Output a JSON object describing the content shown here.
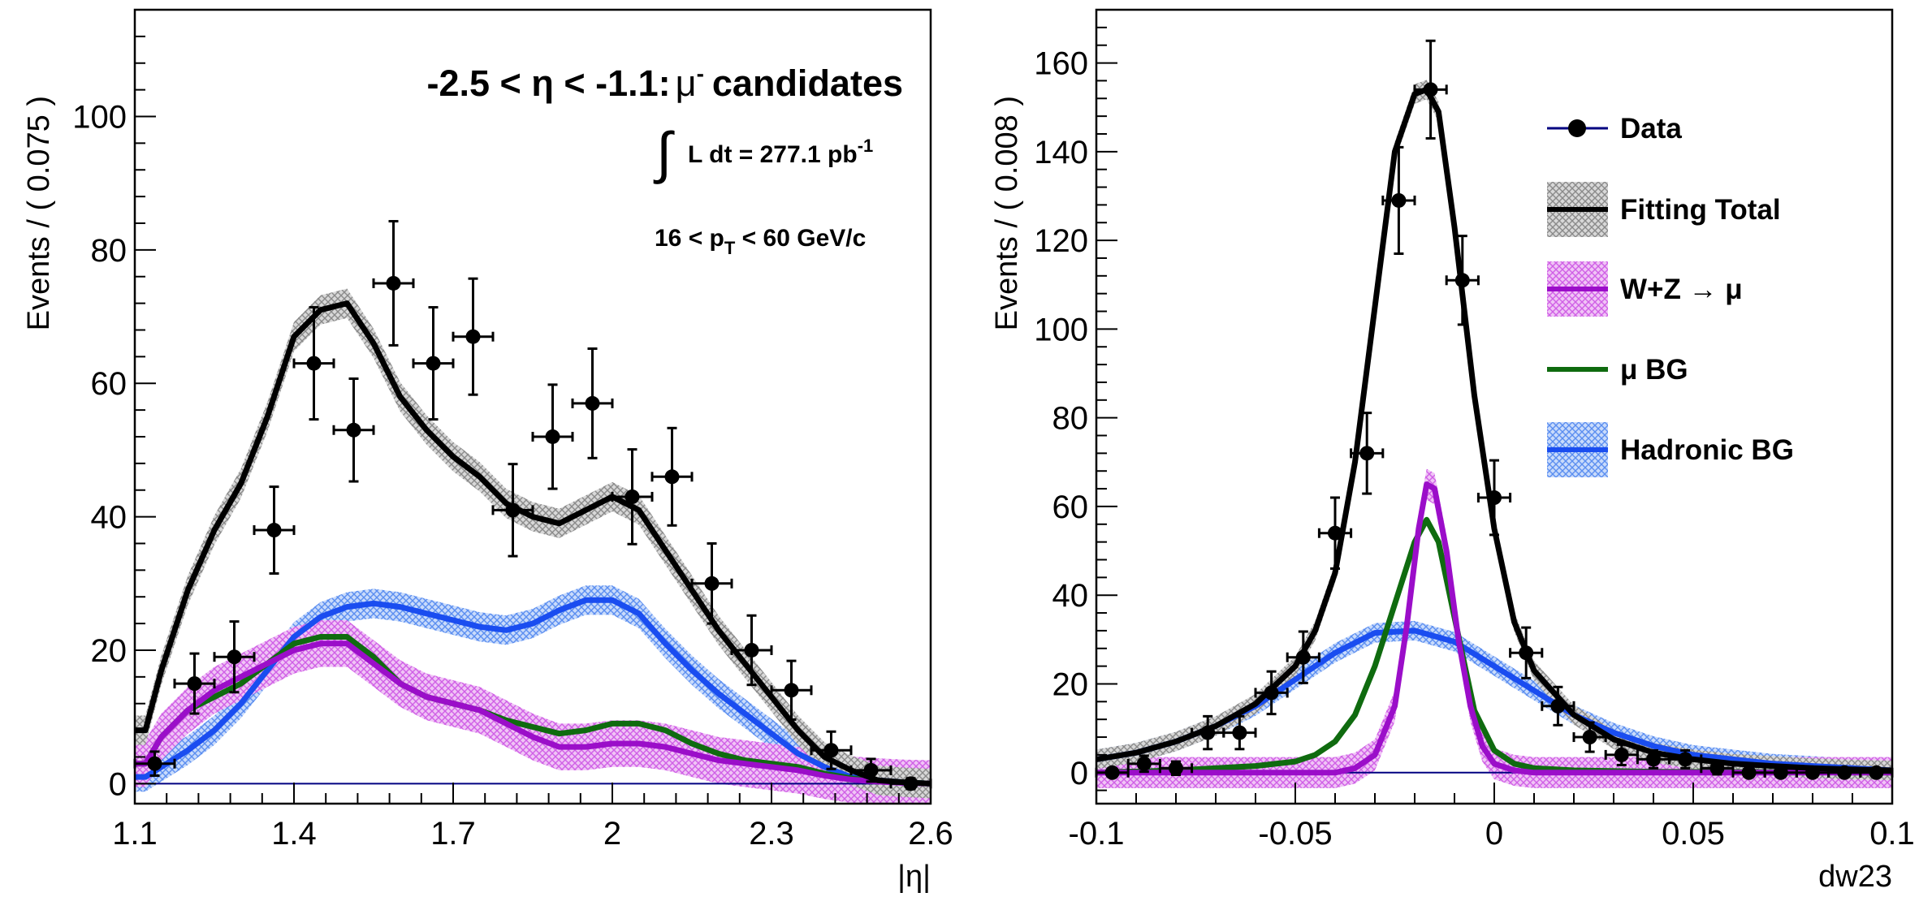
{
  "colors": {
    "data": "#000000",
    "total": "#000000",
    "total_band": "#9a9a9a",
    "signal": "#9b0ec9",
    "signal_band": "#d98be8",
    "mu_bg": "#0f6b0f",
    "hadronic": "#1a4df0",
    "hadronic_band": "#7fa8f5",
    "data_line": "#000080"
  },
  "legend": {
    "data": "Data",
    "total": "Fitting Total",
    "signal": "W+Z → μ",
    "mu_bg": "μ BG",
    "hadronic": "Hadronic BG"
  },
  "annotations": {
    "selection": "-2.5 < η < -1.1:",
    "mu": "μ",
    "mu_sup": "-",
    "candidates": "candidates",
    "lumi_integral": "∫",
    "lumi": "L dt = 277.1 pb",
    "lumi_sup": "-1",
    "pt_pre": "16 < p",
    "pt_sub": "T",
    "pt_post": " < 60 GeV/c"
  },
  "chart_data": [
    {
      "type": "line",
      "xlabel": "|η|",
      "ylabel": "Events / ( 0.075 )",
      "xlim": [
        1.1,
        2.6
      ],
      "ylim": [
        -3,
        116
      ],
      "xticks": [
        1.1,
        1.4,
        1.7,
        2.0,
        2.3,
        2.6
      ],
      "xtick_labels": [
        "1.1",
        "1.4",
        "1.7",
        "2",
        "2.3",
        "2.6"
      ],
      "yticks": [
        0,
        20,
        40,
        60,
        80,
        100
      ],
      "ytick_labels": [
        "0",
        "20",
        "40",
        "60",
        "80",
        "100"
      ],
      "legend_placement": "none",
      "data_points": {
        "x": [
          1.1375,
          1.2125,
          1.2875,
          1.3625,
          1.4375,
          1.5125,
          1.5875,
          1.6625,
          1.7375,
          1.8125,
          1.8875,
          1.9625,
          2.0375,
          2.1125,
          2.1875,
          2.2625,
          2.3375,
          2.4125,
          2.4875,
          2.5625
        ],
        "y": [
          3,
          15,
          19,
          38,
          63,
          53,
          75,
          63,
          67,
          41,
          52,
          57,
          43,
          46,
          30,
          20,
          14,
          5,
          2,
          0
        ],
        "xerr": 0.0375,
        "yerr": [
          1.8,
          4.5,
          5.3,
          6.5,
          8.4,
          7.7,
          9.3,
          8.4,
          8.7,
          6.9,
          7.8,
          8.2,
          7.1,
          7.3,
          6.0,
          5.2,
          4.4,
          2.8,
          1.7,
          0.8
        ]
      },
      "series": [
        {
          "name": "Fitting Total",
          "x": [
            1.1,
            1.12,
            1.15,
            1.2,
            1.25,
            1.3,
            1.35,
            1.4,
            1.45,
            1.5,
            1.55,
            1.6,
            1.65,
            1.7,
            1.75,
            1.8,
            1.85,
            1.9,
            1.95,
            2.0,
            2.05,
            2.1,
            2.15,
            2.2,
            2.25,
            2.3,
            2.35,
            2.4,
            2.45,
            2.5,
            2.55,
            2.6
          ],
          "y": [
            8,
            8,
            17,
            29,
            38,
            45,
            55,
            67,
            71,
            72,
            66,
            58,
            53,
            49,
            46,
            42,
            40,
            39,
            41,
            43,
            41,
            35,
            29,
            23,
            18,
            13,
            8,
            4,
            2,
            0.5,
            0.2,
            0
          ]
        },
        {
          "name": "W+Z → μ",
          "x": [
            1.1,
            1.12,
            1.15,
            1.2,
            1.25,
            1.3,
            1.35,
            1.4,
            1.45,
            1.5,
            1.55,
            1.6,
            1.65,
            1.7,
            1.75,
            1.8,
            1.85,
            1.9,
            1.95,
            2.0,
            2.05,
            2.1,
            2.15,
            2.2,
            2.25,
            2.3,
            2.35,
            2.4,
            2.45,
            2.5,
            2.55,
            2.6
          ],
          "y": [
            3,
            3,
            7,
            11,
            14,
            16,
            18,
            20,
            21,
            21,
            18,
            15,
            13,
            12,
            11,
            9,
            7,
            5.5,
            5.5,
            6,
            6,
            5.5,
            4.5,
            3.5,
            3,
            2.5,
            2,
            1.2,
            0.6,
            0.3,
            0.1,
            0
          ]
        },
        {
          "name": "μ BG",
          "x": [
            1.1,
            1.12,
            1.15,
            1.2,
            1.25,
            1.3,
            1.35,
            1.4,
            1.45,
            1.5,
            1.55,
            1.6,
            1.65,
            1.7,
            1.75,
            1.8,
            1.85,
            1.9,
            1.95,
            2.0,
            2.05,
            2.1,
            2.15,
            2.2,
            2.25,
            2.3,
            2.35,
            2.4,
            2.45,
            2.5,
            2.55,
            2.6
          ],
          "y": [
            3,
            3,
            7,
            11,
            13,
            15,
            18,
            21,
            22,
            22,
            19,
            15,
            13,
            12,
            11,
            9.5,
            8.5,
            7.5,
            8,
            9,
            9,
            8,
            6,
            4.5,
            3.5,
            3,
            2.5,
            1.5,
            0.8,
            0.4,
            0.2,
            0
          ]
        },
        {
          "name": "Hadronic BG",
          "x": [
            1.1,
            1.12,
            1.15,
            1.2,
            1.25,
            1.3,
            1.35,
            1.4,
            1.45,
            1.5,
            1.55,
            1.6,
            1.65,
            1.7,
            1.75,
            1.8,
            1.85,
            1.9,
            1.95,
            2.0,
            2.05,
            2.1,
            2.15,
            2.2,
            2.25,
            2.3,
            2.35,
            2.4,
            2.45,
            2.5,
            2.55,
            2.6
          ],
          "y": [
            1,
            1,
            2.5,
            5,
            8,
            12,
            17,
            22,
            25,
            26.5,
            27,
            26.5,
            25.5,
            24.5,
            23.5,
            23,
            24,
            26,
            27.5,
            27.5,
            25.5,
            21,
            17,
            13.5,
            10.5,
            7.5,
            4.5,
            2.5,
            1,
            0.5,
            0.2,
            0
          ]
        }
      ]
    },
    {
      "type": "line",
      "xlabel": "dw23",
      "ylabel": "Events / ( 0.008 )",
      "xlim": [
        -0.1,
        0.1
      ],
      "ylim": [
        -7,
        172
      ],
      "xticks": [
        -0.1,
        -0.05,
        0,
        0.05,
        0.1
      ],
      "xtick_labels": [
        "-0.1",
        "-0.05",
        "0",
        "0.05",
        "0.1"
      ],
      "yticks": [
        0,
        20,
        40,
        60,
        80,
        100,
        120,
        140,
        160
      ],
      "ytick_labels": [
        "0",
        "20",
        "40",
        "60",
        "80",
        "100",
        "120",
        "140",
        "160"
      ],
      "legend_placement": "top-right",
      "data_points": {
        "x": [
          -0.096,
          -0.088,
          -0.08,
          -0.072,
          -0.064,
          -0.056,
          -0.048,
          -0.04,
          -0.032,
          -0.024,
          -0.016,
          -0.008,
          0.0,
          0.008,
          0.016,
          0.024,
          0.032,
          0.04,
          0.048,
          0.056,
          0.064,
          0.072,
          0.08,
          0.088,
          0.096
        ],
        "y": [
          0,
          2,
          1,
          9,
          9,
          18,
          26,
          54,
          72,
          129,
          154,
          111,
          62,
          27,
          15,
          8,
          4,
          3,
          3,
          1,
          0,
          0,
          0,
          0,
          0
        ],
        "xerr": 0.004,
        "yerr": [
          0.8,
          1.8,
          1.5,
          3.7,
          3.7,
          4.8,
          5.8,
          8.0,
          9.1,
          12.0,
          11.0,
          10.0,
          8.4,
          5.7,
          4.3,
          3.3,
          2.3,
          2.0,
          2.0,
          1.4,
          0.8,
          0.8,
          0.8,
          0.8,
          0.8
        ]
      },
      "series": [
        {
          "name": "Fitting Total",
          "x": [
            -0.1,
            -0.09,
            -0.08,
            -0.07,
            -0.06,
            -0.05,
            -0.045,
            -0.04,
            -0.035,
            -0.03,
            -0.025,
            -0.02,
            -0.017,
            -0.014,
            -0.01,
            -0.005,
            0.0,
            0.005,
            0.01,
            0.02,
            0.03,
            0.04,
            0.05,
            0.06,
            0.07,
            0.08,
            0.09,
            0.1
          ],
          "y": [
            3,
            4.5,
            7,
            10.5,
            15.5,
            24,
            32,
            45,
            70,
            105,
            140,
            153,
            154,
            149,
            123,
            85,
            55,
            34,
            23,
            13,
            7.5,
            4.5,
            3,
            2,
            1.5,
            1,
            0.7,
            0.5
          ]
        },
        {
          "name": "W+Z → μ",
          "x": [
            -0.1,
            -0.04,
            -0.035,
            -0.03,
            -0.025,
            -0.022,
            -0.019,
            -0.017,
            -0.015,
            -0.012,
            -0.009,
            -0.006,
            -0.003,
            0.0,
            0.005,
            0.01,
            0.02,
            0.1
          ],
          "y": [
            0,
            0,
            1,
            4,
            15,
            33,
            55,
            65,
            64,
            50,
            30,
            15,
            6,
            2,
            0.5,
            0,
            0,
            0
          ]
        },
        {
          "name": "μ BG",
          "x": [
            -0.1,
            -0.08,
            -0.06,
            -0.05,
            -0.045,
            -0.04,
            -0.035,
            -0.03,
            -0.025,
            -0.02,
            -0.017,
            -0.014,
            -0.01,
            -0.005,
            0.0,
            0.005,
            0.01,
            0.02,
            0.04,
            0.1
          ],
          "y": [
            0,
            0.5,
            1.5,
            2.5,
            4,
            7,
            13,
            24,
            38,
            52,
            57,
            52,
            35,
            14,
            5,
            2,
            1,
            0.5,
            0.2,
            0
          ]
        },
        {
          "name": "Hadronic BG",
          "x": [
            -0.1,
            -0.09,
            -0.08,
            -0.07,
            -0.06,
            -0.05,
            -0.04,
            -0.03,
            -0.02,
            -0.01,
            0.0,
            0.01,
            0.02,
            0.03,
            0.04,
            0.05,
            0.06,
            0.07,
            0.08,
            0.09,
            0.1
          ],
          "y": [
            3,
            4.5,
            7,
            10.5,
            15,
            21,
            27,
            31.5,
            32,
            29.5,
            24,
            18.5,
            13,
            9,
            6,
            4,
            3,
            2,
            1.5,
            1,
            0.5
          ]
        }
      ]
    }
  ]
}
